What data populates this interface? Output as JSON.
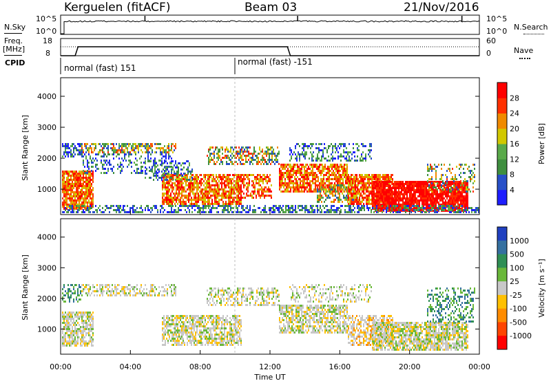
{
  "header": {
    "station": "Kerguelen (fitACF)",
    "beam": "Beam 03",
    "date": "21/Nov/2016"
  },
  "left_labels": {
    "nsky": "N.Sky",
    "freq_line1": "Freq.",
    "freq_line2": "[MHz]",
    "cpid": "CPID"
  },
  "right_labels": {
    "nsearch": "N.Search",
    "nave": "Nave"
  },
  "cpid_labels": {
    "first": "normal (fast) 151",
    "second": "normal (fast) -151"
  },
  "noise_axis": {
    "top_tick": "10^5",
    "bottom_tick": "10^0"
  },
  "freq_axis": {
    "top_tick": "18",
    "bottom_tick": "8",
    "right_top_tick": "60",
    "right_bottom_tick": "0"
  },
  "time_axis_title": "Time UT",
  "chart_data": [
    {
      "type": "line",
      "name": "noise-sky",
      "x": [
        "00:00",
        "00:30",
        "00:40",
        "04:50",
        "05:00",
        "13:35",
        "13:45",
        "22:50",
        "23:00",
        "24:00"
      ],
      "y_log10": [
        0,
        0,
        4.2,
        4.2,
        5,
        4.2,
        5,
        4.6,
        5,
        4.6
      ],
      "ylabel": "N.Sky",
      "ticks": [
        "10^0",
        "10^5"
      ]
    },
    {
      "type": "line",
      "name": "frequency",
      "x": [
        "00:00",
        "00:50",
        "01:00",
        "13:00",
        "13:10",
        "24:00"
      ],
      "y": [
        8,
        8,
        13.2,
        13.2,
        8,
        8
      ],
      "ylim": [
        8,
        18
      ],
      "ylabel": "Freq. [MHz]"
    },
    {
      "type": "heatmap",
      "name": "power",
      "ylabel": "Slant Range [km]",
      "xlabel": "Time UT",
      "y_ticks": [
        "1000",
        "2000",
        "3000",
        "4000"
      ],
      "x_ticks": [
        "00:00",
        "04:00",
        "08:00",
        "12:00",
        "16:00",
        "20:00",
        "00:00"
      ],
      "colorbar": {
        "label": "Power [dB]",
        "ticks": [
          "4",
          "8",
          "12",
          "16",
          "20",
          "24",
          "28"
        ],
        "colors": [
          "#1e1eff",
          "#2850c8",
          "#3f8f3f",
          "#5aaa4a",
          "#d2c800",
          "#f08a00",
          "#ff3000",
          "#ff0000"
        ]
      }
    },
    {
      "type": "heatmap",
      "name": "velocity",
      "ylabel": "Slant Range [km]",
      "xlabel": "Time UT",
      "y_ticks": [
        "1000",
        "2000",
        "3000",
        "4000"
      ],
      "x_ticks": [
        "00:00",
        "04:00",
        "08:00",
        "12:00",
        "16:00",
        "20:00",
        "00:00"
      ],
      "colorbar": {
        "label": "Velocity [m s⁻¹]",
        "ticks": [
          "1000",
          "500",
          "100",
          "25",
          "-25",
          "-100",
          "-500",
          "-1000"
        ],
        "colors": [
          "#2040c0",
          "#3570a0",
          "#2f8f55",
          "#6ab83a",
          "#c8c8c8",
          "#ffc000",
          "#ff8c00",
          "#ff4500",
          "#ff0000"
        ]
      }
    }
  ]
}
